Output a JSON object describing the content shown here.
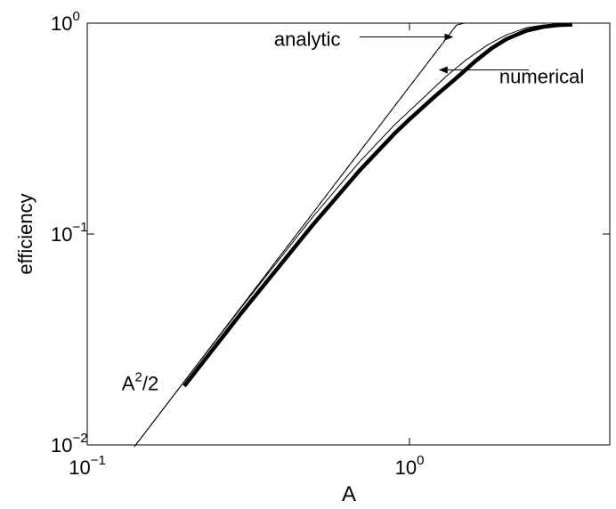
{
  "chart_data": {
    "type": "line",
    "title": "",
    "xlabel": "A",
    "ylabel": "efficiency",
    "xscale": "log",
    "yscale": "log",
    "xlim": [
      0.1,
      3.4
    ],
    "ylim": [
      0.01,
      1
    ],
    "grid": false,
    "x_ticks": [
      {
        "value": 0.1,
        "base": "10",
        "exp": "−1"
      },
      {
        "value": 1,
        "base": "10",
        "exp": "0"
      }
    ],
    "y_ticks": [
      {
        "value": 0.01,
        "base": "10",
        "exp": "−2"
      },
      {
        "value": 0.1,
        "base": "10",
        "exp": "−1"
      },
      {
        "value": 1,
        "base": "10",
        "exp": "0"
      }
    ],
    "series": [
      {
        "key": "asymptote",
        "style": "thin",
        "x": [
          0.14,
          0.2,
          0.3,
          0.5,
          0.8,
          1.0,
          1.2,
          1.4,
          1.48
        ],
        "y": [
          0.0098,
          0.02,
          0.045,
          0.125,
          0.32,
          0.5,
          0.72,
          0.98,
          1.0
        ]
      },
      {
        "key": "dashed",
        "style": "dashed",
        "x": [
          0.2,
          0.3,
          0.5,
          0.8,
          1.0,
          1.2,
          1.4
        ],
        "y": [
          0.02,
          0.045,
          0.125,
          0.32,
          0.5,
          0.72,
          0.98
        ]
      },
      {
        "key": "analytic",
        "style": "thin",
        "x": [
          0.14,
          0.2,
          0.3,
          0.5,
          0.7,
          0.9,
          1.1,
          1.3,
          1.5,
          1.75,
          2.0,
          2.3,
          2.6,
          3.0
        ],
        "y": [
          0.0098,
          0.02,
          0.0446,
          0.12,
          0.22,
          0.33,
          0.44,
          0.56,
          0.67,
          0.79,
          0.88,
          0.95,
          0.98,
          0.995
        ]
      },
      {
        "key": "numerical",
        "style": "thick",
        "x": [
          0.2,
          0.3,
          0.5,
          0.7,
          0.9,
          1.0,
          1.2,
          1.4,
          1.6,
          1.8,
          2.0,
          2.3,
          2.6,
          2.9,
          3.2
        ],
        "y": [
          0.019,
          0.042,
          0.11,
          0.2,
          0.3,
          0.35,
          0.45,
          0.55,
          0.66,
          0.76,
          0.84,
          0.92,
          0.96,
          0.98,
          0.985
        ]
      }
    ],
    "annotations": [
      {
        "key": "analytic",
        "text": "analytic",
        "text_x": 0.38,
        "text_y": 0.78,
        "arrow_from": [
          0.7,
          0.86
        ],
        "arrow_to": [
          1.36,
          0.86
        ]
      },
      {
        "key": "numerical",
        "text": "numerical",
        "text_x": 1.9,
        "text_y": 0.52,
        "arrow_from": [
          2.35,
          0.6
        ],
        "arrow_to": [
          1.24,
          0.6
        ]
      },
      {
        "key": "asymptote",
        "text": "A",
        "sup": "2",
        "tail": "/2",
        "text_x": 0.128,
        "text_y": 0.0182
      }
    ]
  }
}
